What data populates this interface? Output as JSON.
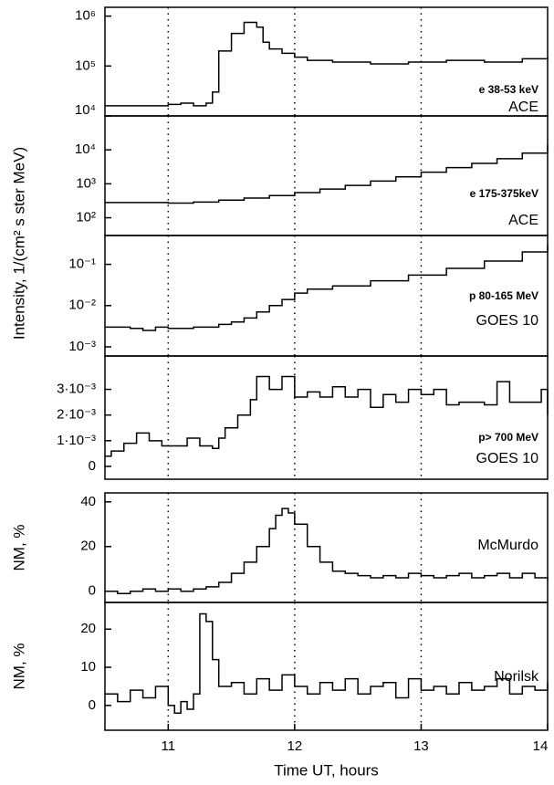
{
  "chart_data": [
    {
      "type": "line",
      "step": true,
      "log_y": true,
      "color": "#000000",
      "xlim": [
        10.5,
        14
      ],
      "ylim": [
        10000,
        1500000
      ],
      "yticks": [
        {
          "value": 10000,
          "label": "10⁴"
        },
        {
          "value": 100000,
          "label": "10⁵"
        },
        {
          "value": 1000000,
          "label": "10⁶"
        }
      ],
      "vlines": [
        11,
        12,
        13
      ],
      "ylabel": "Intensity, 1/(cm² s ster MeV)",
      "annotations": [
        "e 38-53 keV",
        "ACE"
      ],
      "x": [
        10.5,
        10.8,
        11.0,
        11.1,
        11.2,
        11.3,
        11.35,
        11.4,
        11.5,
        11.6,
        11.7,
        11.75,
        11.8,
        11.9,
        12.0,
        12.1,
        12.3,
        12.6,
        12.9,
        13.2,
        13.5,
        13.8,
        14.0
      ],
      "values": [
        16000,
        16000,
        17000,
        18000,
        16000,
        18000,
        30000,
        200000,
        450000,
        750000,
        600000,
        300000,
        220000,
        180000,
        150000,
        130000,
        120000,
        110000,
        120000,
        130000,
        120000,
        140000,
        150000
      ]
    },
    {
      "type": "line",
      "step": true,
      "log_y": true,
      "color": "#000000",
      "xlim": [
        10.5,
        14
      ],
      "ylim": [
        30,
        100000
      ],
      "yticks": [
        {
          "value": 100,
          "label": "10²"
        },
        {
          "value": 1000,
          "label": "10³"
        },
        {
          "value": 10000,
          "label": "10⁴"
        }
      ],
      "vlines": [
        11,
        12,
        13
      ],
      "annotations": [
        "e 175-375keV",
        "ACE"
      ],
      "x": [
        10.5,
        11.0,
        11.2,
        11.4,
        11.6,
        11.8,
        12.0,
        12.2,
        12.4,
        12.6,
        12.8,
        13.0,
        13.2,
        13.4,
        13.6,
        13.8,
        14.0
      ],
      "values": [
        280,
        270,
        290,
        330,
        380,
        450,
        550,
        700,
        900,
        1200,
        1600,
        2200,
        3000,
        4000,
        5500,
        8000,
        14000
      ]
    },
    {
      "type": "line",
      "step": true,
      "log_y": true,
      "color": "#000000",
      "xlim": [
        10.5,
        14
      ],
      "ylim": [
        0.0006,
        0.5
      ],
      "yticks": [
        {
          "value": 0.001,
          "label": "10⁻³"
        },
        {
          "value": 0.01,
          "label": "10⁻²"
        },
        {
          "value": 0.1,
          "label": "10⁻¹"
        }
      ],
      "vlines": [
        11,
        12,
        13
      ],
      "annotations": [
        "p 80-165 MeV",
        "GOES 10"
      ],
      "x": [
        10.5,
        10.7,
        10.8,
        10.9,
        11.0,
        11.2,
        11.4,
        11.5,
        11.6,
        11.7,
        11.8,
        11.9,
        12.0,
        12.1,
        12.3,
        12.6,
        12.9,
        13.2,
        13.5,
        13.8,
        14.0
      ],
      "values": [
        0.003,
        0.0028,
        0.0025,
        0.003,
        0.0028,
        0.003,
        0.0035,
        0.004,
        0.005,
        0.007,
        0.01,
        0.014,
        0.02,
        0.025,
        0.03,
        0.04,
        0.055,
        0.08,
        0.12,
        0.2,
        0.3
      ]
    },
    {
      "type": "line",
      "step": true,
      "log_y": false,
      "color": "#000000",
      "xlim": [
        10.5,
        14
      ],
      "ylim": [
        -0.0005,
        0.0043
      ],
      "yticks": [
        0,
        {
          "value": 0.001,
          "label": "1·10⁻³"
        },
        {
          "value": 0.002,
          "label": "2·10⁻³"
        },
        {
          "value": 0.003,
          "label": "3·10⁻³"
        }
      ],
      "vlines": [
        11,
        12,
        13
      ],
      "annotations": [
        "p> 700 MeV",
        "GOES 10"
      ],
      "x": [
        10.5,
        10.55,
        10.65,
        10.75,
        10.85,
        10.95,
        11.1,
        11.15,
        11.25,
        11.35,
        11.4,
        11.45,
        11.55,
        11.65,
        11.7,
        11.8,
        11.9,
        12.0,
        12.1,
        12.2,
        12.3,
        12.4,
        12.5,
        12.6,
        12.7,
        12.8,
        12.9,
        13.0,
        13.1,
        13.2,
        13.3,
        13.5,
        13.6,
        13.7,
        13.85,
        13.95,
        14.0
      ],
      "values": [
        0.0004,
        0.0006,
        0.0009,
        0.0013,
        0.001,
        0.0008,
        0.0008,
        0.0011,
        0.0008,
        0.0007,
        0.0011,
        0.0015,
        0.002,
        0.0026,
        0.0035,
        0.003,
        0.0035,
        0.0027,
        0.0029,
        0.0027,
        0.0031,
        0.0027,
        0.003,
        0.0023,
        0.0028,
        0.0025,
        0.003,
        0.0028,
        0.003,
        0.0024,
        0.0025,
        0.0024,
        0.0033,
        0.0025,
        0.0025,
        0.003,
        0.002
      ]
    },
    {
      "type": "line",
      "step": true,
      "log_y": false,
      "color": "#000000",
      "xlim": [
        10.5,
        14
      ],
      "ylim": [
        -5,
        44
      ],
      "yticks": [
        0,
        20,
        40
      ],
      "vlines": [
        11,
        12,
        13
      ],
      "ylabel": "NM, %",
      "annotations": [
        "McMurdo"
      ],
      "x": [
        10.5,
        10.6,
        10.7,
        10.8,
        10.9,
        11.0,
        11.1,
        11.2,
        11.3,
        11.4,
        11.5,
        11.6,
        11.7,
        11.8,
        11.85,
        11.9,
        11.95,
        12.0,
        12.1,
        12.2,
        12.3,
        12.4,
        12.5,
        12.6,
        12.7,
        12.8,
        12.9,
        13.0,
        13.1,
        13.2,
        13.3,
        13.4,
        13.5,
        13.6,
        13.7,
        13.8,
        13.9,
        14.0
      ],
      "values": [
        0,
        -1,
        0,
        1,
        0,
        1,
        0,
        1,
        2,
        4,
        8,
        13,
        20,
        28,
        34,
        37,
        35,
        30,
        20,
        13,
        9,
        8,
        7,
        6,
        7,
        6,
        8,
        7,
        6,
        7,
        8,
        6,
        7,
        8,
        6,
        8,
        6,
        5
      ]
    },
    {
      "type": "line",
      "step": true,
      "log_y": false,
      "color": "#000000",
      "xlim": [
        10.5,
        14
      ],
      "ylim": [
        -6.5,
        27
      ],
      "yticks": [
        0,
        10,
        20
      ],
      "xticks": [
        11,
        12,
        13,
        14
      ],
      "vlines": [
        11,
        12,
        13
      ],
      "ylabel": "NM, %",
      "xlabel": "Time UT, hours",
      "annotations": [
        "Norilsk"
      ],
      "x": [
        10.5,
        10.6,
        10.7,
        10.8,
        10.9,
        11.0,
        11.05,
        11.1,
        11.15,
        11.2,
        11.25,
        11.3,
        11.35,
        11.4,
        11.5,
        11.6,
        11.7,
        11.8,
        11.9,
        12.0,
        12.1,
        12.2,
        12.3,
        12.4,
        12.5,
        12.6,
        12.7,
        12.8,
        12.9,
        13.0,
        13.1,
        13.2,
        13.3,
        13.4,
        13.5,
        13.6,
        13.7,
        13.8,
        13.9,
        14.0
      ],
      "values": [
        3,
        1,
        4,
        2,
        5,
        0,
        -2,
        1,
        -1,
        3,
        24,
        22,
        12,
        5,
        6,
        3,
        7,
        4,
        8,
        5,
        3,
        6,
        4,
        7,
        3,
        5,
        6,
        2,
        7,
        4,
        5,
        3,
        6,
        4,
        5,
        7,
        3,
        5,
        4,
        6
      ]
    }
  ]
}
